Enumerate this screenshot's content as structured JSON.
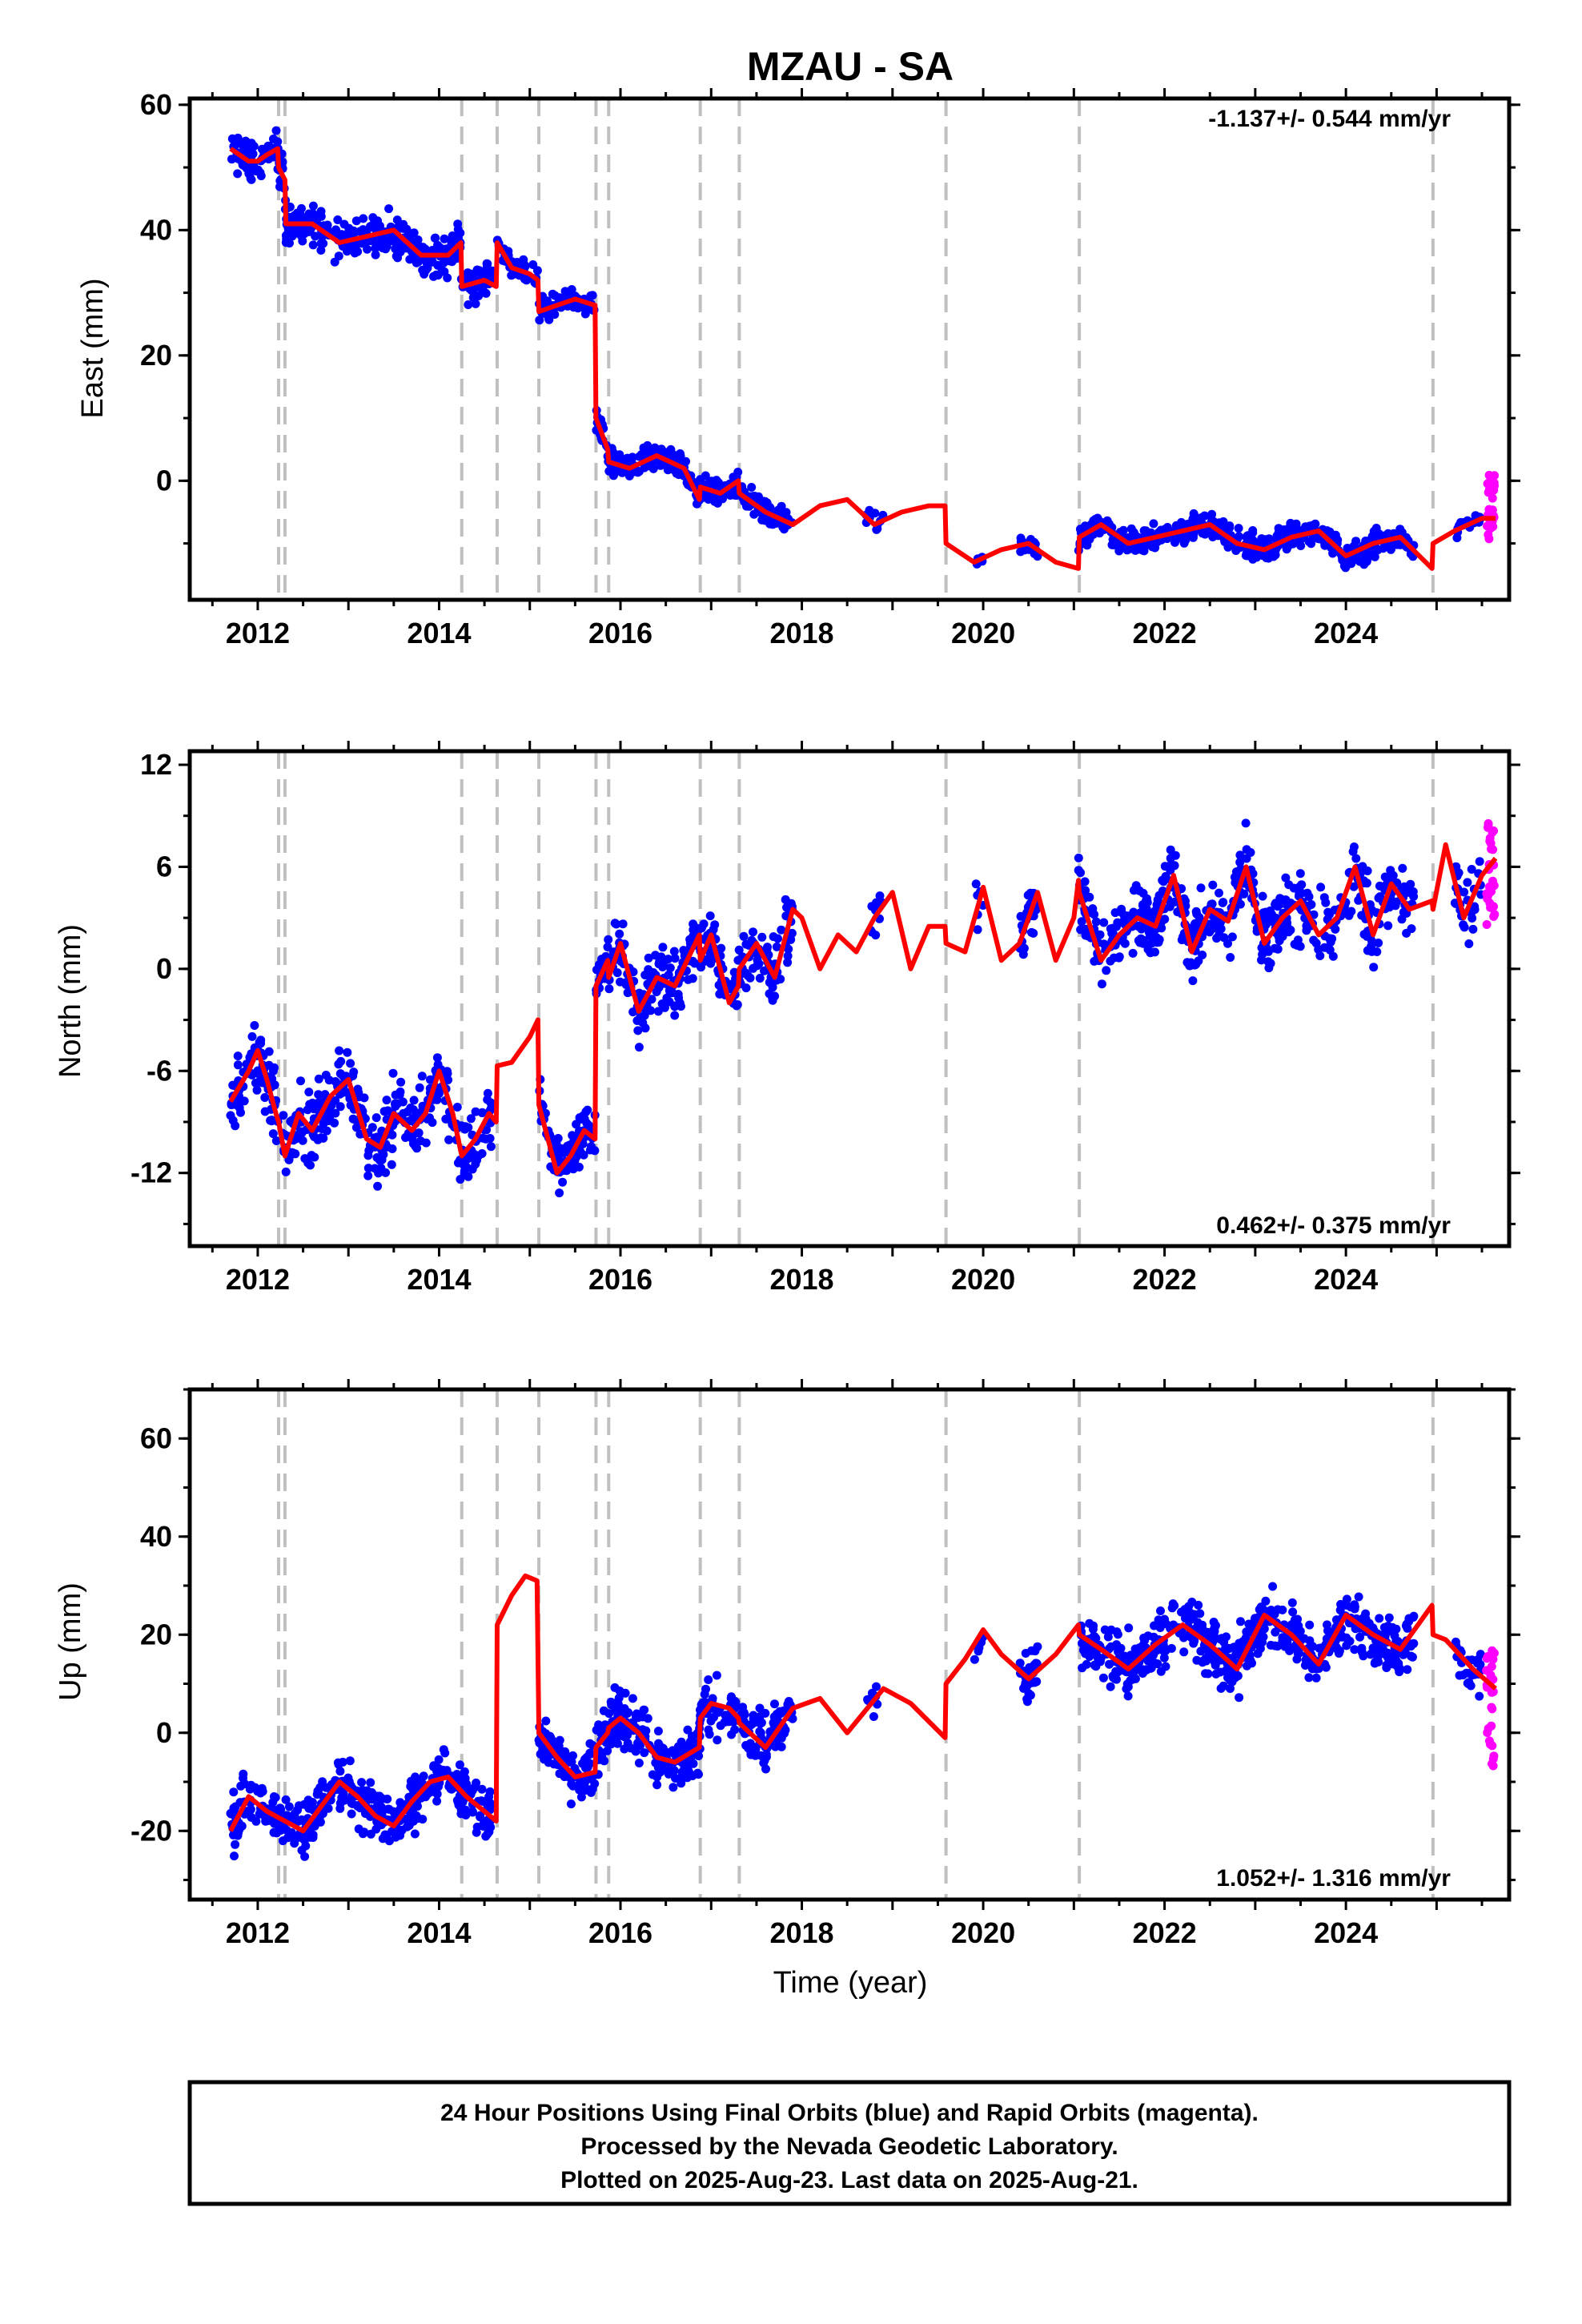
{
  "title": "MZAU - SA",
  "colors": {
    "final_orbits": "#0000ff",
    "rapid_orbits": "#ff00ff",
    "model": "#ff0000",
    "events": "#c0c0c0",
    "axes": "#000000"
  },
  "x_axis": {
    "label": "Time (year)",
    "xlim": [
      2011.25,
      2025.8
    ],
    "ticks": [
      "2012",
      "2014",
      "2016",
      "2018",
      "2020",
      "2022",
      "2024"
    ],
    "tick_values": [
      2012,
      2014,
      2016,
      2018,
      2020,
      2022,
      2024
    ]
  },
  "event_lines": [
    2012.23,
    2012.3,
    2014.25,
    2014.64,
    2015.1,
    2015.73,
    2015.87,
    2016.88,
    2017.31,
    2019.59,
    2021.06,
    2024.96
  ],
  "footer": {
    "line1": "24 Hour Positions Using Final Orbits (blue) and Rapid Orbits (magenta).",
    "line2": "Processed by the Nevada Geodetic Laboratory.",
    "line3": "Plotted on 2025-Aug-23. Last data on 2025-Aug-21."
  },
  "chart_data": [
    {
      "type": "scatter",
      "component": "east",
      "ylabel": "East (mm)",
      "ylim": [
        -19,
        61
      ],
      "yticks": [
        "60",
        "40",
        "20",
        "0"
      ],
      "ytick_values": [
        60,
        40,
        20,
        0
      ],
      "rate_text": "-1.137+/- 0.544 mm/yr",
      "rate_position": "top-right",
      "model_x": [
        2011.7,
        2011.9,
        2012.0,
        2012.1,
        2012.22,
        2012.23,
        2012.3,
        2012.31,
        2012.6,
        2012.9,
        2013.2,
        2013.5,
        2013.8,
        2014.1,
        2014.24,
        2014.25,
        2014.5,
        2014.63,
        2014.64,
        2014.8,
        2015.0,
        2015.09,
        2015.1,
        2015.3,
        2015.5,
        2015.72,
        2015.73,
        2015.86,
        2015.87,
        2016.1,
        2016.4,
        2016.7,
        2016.87,
        2016.88,
        2017.1,
        2017.3,
        2017.31,
        2017.6,
        2017.9,
        2018.2,
        2018.5,
        2018.8,
        2019.1,
        2019.4,
        2019.58,
        2019.59,
        2019.9,
        2020.2,
        2020.5,
        2020.8,
        2021.05,
        2021.06,
        2021.3,
        2021.6,
        2021.9,
        2022.2,
        2022.5,
        2022.8,
        2023.1,
        2023.4,
        2023.7,
        2024.0,
        2024.3,
        2024.6,
        2024.95,
        2024.96,
        2025.2,
        2025.5,
        2025.65
      ],
      "model_y": [
        53,
        51,
        51,
        52,
        53,
        50,
        48,
        41,
        41,
        38,
        39,
        40,
        36,
        36,
        38,
        31,
        32,
        31,
        38,
        34,
        33,
        32,
        27,
        28,
        29,
        28,
        10,
        5,
        3,
        2,
        4,
        2,
        -3,
        -1,
        -2,
        0,
        -2,
        -5,
        -7,
        -4,
        -3,
        -7,
        -5,
        -4,
        -4,
        -10,
        -13,
        -11,
        -10,
        -13,
        -14,
        -9,
        -7,
        -10,
        -9,
        -8,
        -7,
        -10,
        -11,
        -9,
        -8,
        -12,
        -10,
        -9,
        -14,
        -10,
        -8,
        -6,
        -6
      ],
      "clusters": [
        {
          "x0": 2011.7,
          "x1": 2012.5,
          "n": 120,
          "spread": 2.5
        },
        {
          "x0": 2012.3,
          "x1": 2014.6,
          "n": 320,
          "spread": 2.6
        },
        {
          "x0": 2014.64,
          "x1": 2015.72,
          "n": 130,
          "spread": 1.5
        },
        {
          "x0": 2015.73,
          "x1": 2017.9,
          "n": 300,
          "spread": 1.8
        },
        {
          "x0": 2018.7,
          "x1": 2018.9,
          "n": 10,
          "spread": 1.2
        },
        {
          "x0": 2019.9,
          "x1": 2020.0,
          "n": 6,
          "spread": 1.5
        },
        {
          "x0": 2020.4,
          "x1": 2020.6,
          "n": 20,
          "spread": 1.8
        },
        {
          "x0": 2021.05,
          "x1": 2024.75,
          "n": 520,
          "spread": 1.8
        },
        {
          "x0": 2025.2,
          "x1": 2025.5,
          "n": 30,
          "spread": 1.0
        }
      ],
      "rapid": {
        "x0": 2025.55,
        "x1": 2025.64,
        "n": 28,
        "ymin": -9.5,
        "ymax": 1
      }
    },
    {
      "type": "scatter",
      "component": "north",
      "ylabel": "North (mm)",
      "ylim": [
        -16.3,
        12.8
      ],
      "yticks": [
        "12",
        "6",
        "0",
        "-6",
        "-12"
      ],
      "ytick_values": [
        12,
        6,
        0,
        -6,
        -12
      ],
      "rate_text": "0.462+/- 0.375 mm/yr",
      "rate_position": "bottom-right",
      "model_x": [
        2011.7,
        2011.9,
        2012.0,
        2012.1,
        2012.2,
        2012.23,
        2012.3,
        2012.45,
        2012.6,
        2012.8,
        2013.0,
        2013.2,
        2013.35,
        2013.5,
        2013.7,
        2013.85,
        2014.0,
        2014.15,
        2014.25,
        2014.4,
        2014.55,
        2014.63,
        2014.64,
        2014.8,
        2015.0,
        2015.09,
        2015.1,
        2015.3,
        2015.45,
        2015.6,
        2015.72,
        2015.73,
        2015.86,
        2015.87,
        2016.0,
        2016.2,
        2016.4,
        2016.6,
        2016.87,
        2016.88,
        2017.0,
        2017.2,
        2017.3,
        2017.31,
        2017.5,
        2017.7,
        2017.9,
        2018.0,
        2018.2,
        2018.4,
        2018.6,
        2018.8,
        2019.0,
        2019.2,
        2019.4,
        2019.58,
        2019.59,
        2019.8,
        2020.0,
        2020.2,
        2020.4,
        2020.6,
        2020.8,
        2021.0,
        2021.05,
        2021.06,
        2021.3,
        2021.5,
        2021.7,
        2021.9,
        2022.1,
        2022.3,
        2022.5,
        2022.7,
        2022.9,
        2023.1,
        2023.3,
        2023.5,
        2023.7,
        2023.9,
        2024.1,
        2024.3,
        2024.5,
        2024.7,
        2024.95,
        2024.96,
        2025.1,
        2025.3,
        2025.5,
        2025.65
      ],
      "model_y": [
        -7.8,
        -6,
        -4.8,
        -6.5,
        -8.5,
        -9,
        -11,
        -8.5,
        -9.5,
        -7.5,
        -6.5,
        -10,
        -10.5,
        -8.5,
        -9.5,
        -8.5,
        -6,
        -8.5,
        -11,
        -10,
        -8.5,
        -9,
        -5.7,
        -5.5,
        -4,
        -3,
        -8,
        -12,
        -11,
        -9.5,
        -10,
        -1,
        0.5,
        -0.5,
        1.5,
        -2.5,
        -0.5,
        -1,
        2,
        0.5,
        2,
        -2,
        -1,
        0,
        1.5,
        -0.5,
        3.5,
        3,
        0,
        2,
        1,
        3,
        4.5,
        0,
        2.5,
        2.5,
        1.5,
        1,
        4.8,
        0.5,
        1.5,
        4.5,
        0.5,
        3,
        5.2,
        4.5,
        0.5,
        2,
        3,
        2.5,
        5.5,
        1,
        3.5,
        2.8,
        6,
        1.5,
        3,
        4,
        2,
        3,
        6,
        2,
        5,
        3.5,
        4,
        3.5,
        7.3,
        3,
        5.5,
        6.5
      ],
      "clusters": [
        {
          "x0": 2011.7,
          "x1": 2014.6,
          "n": 380,
          "spread": 1.8
        },
        {
          "x0": 2015.1,
          "x1": 2015.72,
          "n": 80,
          "spread": 1.3
        },
        {
          "x0": 2015.73,
          "x1": 2017.9,
          "n": 300,
          "spread": 1.6
        },
        {
          "x0": 2018.7,
          "x1": 2018.9,
          "n": 10,
          "spread": 1.5
        },
        {
          "x0": 2019.9,
          "x1": 2020.0,
          "n": 6,
          "spread": 1.8
        },
        {
          "x0": 2020.4,
          "x1": 2020.6,
          "n": 25,
          "spread": 1.8
        },
        {
          "x0": 2021.05,
          "x1": 2024.75,
          "n": 520,
          "spread": 1.8
        },
        {
          "x0": 2025.2,
          "x1": 2025.5,
          "n": 30,
          "spread": 1.5
        }
      ],
      "rapid": {
        "x0": 2025.55,
        "x1": 2025.64,
        "n": 28,
        "ymin": 2.5,
        "ymax": 8.7
      }
    },
    {
      "type": "scatter",
      "component": "up",
      "ylabel": "Up (mm)",
      "ylim": [
        -34,
        70
      ],
      "yticks": [
        "60",
        "40",
        "20",
        "0",
        "-20"
      ],
      "ytick_values": [
        60,
        40,
        20,
        0,
        -20
      ],
      "rate_text": "1.052+/- 1.316 mm/yr",
      "rate_position": "bottom-right",
      "model_x": [
        2011.7,
        2011.9,
        2012.1,
        2012.3,
        2012.5,
        2012.7,
        2012.9,
        2013.1,
        2013.3,
        2013.5,
        2013.7,
        2013.9,
        2014.1,
        2014.3,
        2014.5,
        2014.63,
        2014.64,
        2014.8,
        2014.95,
        2015.08,
        2015.1,
        2015.3,
        2015.5,
        2015.72,
        2015.73,
        2015.86,
        2015.87,
        2016.0,
        2016.2,
        2016.4,
        2016.6,
        2016.87,
        2016.88,
        2017.0,
        2017.2,
        2017.3,
        2017.31,
        2017.6,
        2017.9,
        2018.2,
        2018.5,
        2018.9,
        2019.2,
        2019.58,
        2019.59,
        2019.8,
        2020.0,
        2020.2,
        2020.5,
        2020.8,
        2021.05,
        2021.06,
        2021.3,
        2021.6,
        2021.9,
        2022.2,
        2022.5,
        2022.8,
        2023.1,
        2023.4,
        2023.7,
        2024.0,
        2024.3,
        2024.6,
        2024.95,
        2024.96,
        2025.1,
        2025.4,
        2025.65
      ],
      "model_y": [
        -20,
        -13,
        -16,
        -18,
        -20,
        -15,
        -10,
        -13,
        -17,
        -19,
        -14,
        -10,
        -9,
        -13,
        -16,
        -18,
        22,
        28,
        32,
        31,
        0,
        -5,
        -9,
        -8,
        -3,
        0,
        1,
        3,
        0,
        -5,
        -6,
        -3,
        3,
        6,
        5,
        3,
        2,
        -3,
        5,
        7,
        0,
        9,
        6,
        -1,
        10,
        15,
        21,
        16,
        11,
        16,
        22,
        20,
        17,
        13,
        18,
        22,
        18,
        13,
        24,
        20,
        14,
        24,
        20,
        17,
        26,
        20,
        19,
        13,
        9
      ],
      "clusters": [
        {
          "x0": 2011.7,
          "x1": 2014.6,
          "n": 400,
          "spread": 4.5
        },
        {
          "x0": 2015.1,
          "x1": 2015.72,
          "n": 100,
          "spread": 4
        },
        {
          "x0": 2015.73,
          "x1": 2017.9,
          "n": 320,
          "spread": 5
        },
        {
          "x0": 2018.7,
          "x1": 2018.9,
          "n": 8,
          "spread": 4
        },
        {
          "x0": 2019.9,
          "x1": 2020.0,
          "n": 6,
          "spread": 4
        },
        {
          "x0": 2020.4,
          "x1": 2020.6,
          "n": 30,
          "spread": 5
        },
        {
          "x0": 2021.05,
          "x1": 2024.75,
          "n": 560,
          "spread": 5
        },
        {
          "x0": 2025.2,
          "x1": 2025.5,
          "n": 30,
          "spread": 4
        }
      ],
      "rapid": {
        "x0": 2025.55,
        "x1": 2025.64,
        "n": 28,
        "ymin": -7,
        "ymax": 17
      }
    }
  ]
}
